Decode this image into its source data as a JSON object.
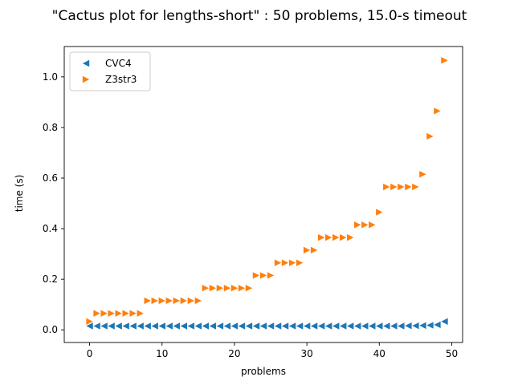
{
  "chart_data": {
    "type": "scatter",
    "title": "\"Cactus plot for lengths-short\" : 50 problems, 15.0-s timeout",
    "xlabel": "problems",
    "ylabel": "time (s)",
    "xlim": [
      -3.5,
      51.5
    ],
    "ylim": [
      -0.05,
      1.12
    ],
    "xticks": [
      0,
      10,
      20,
      30,
      40,
      50
    ],
    "yticks": [
      0.0,
      0.2,
      0.4,
      0.6,
      0.8,
      1.0
    ],
    "grid": false,
    "legend_position": "upper-left",
    "series": [
      {
        "name": "CVC4",
        "color": "#1f77b4",
        "marker": "triangle-left",
        "x": [
          0,
          1,
          2,
          3,
          4,
          5,
          6,
          7,
          8,
          9,
          10,
          11,
          12,
          13,
          14,
          15,
          16,
          17,
          18,
          19,
          20,
          21,
          22,
          23,
          24,
          25,
          26,
          27,
          28,
          29,
          30,
          31,
          32,
          33,
          34,
          35,
          36,
          37,
          38,
          39,
          40,
          41,
          42,
          43,
          44,
          45,
          46,
          47,
          48,
          49
        ],
        "y": [
          0.015,
          0.015,
          0.015,
          0.015,
          0.015,
          0.015,
          0.015,
          0.015,
          0.015,
          0.015,
          0.015,
          0.015,
          0.015,
          0.015,
          0.015,
          0.015,
          0.015,
          0.015,
          0.015,
          0.015,
          0.015,
          0.015,
          0.015,
          0.015,
          0.015,
          0.015,
          0.015,
          0.015,
          0.015,
          0.015,
          0.015,
          0.015,
          0.015,
          0.015,
          0.015,
          0.015,
          0.015,
          0.015,
          0.015,
          0.015,
          0.015,
          0.015,
          0.015,
          0.015,
          0.016,
          0.016,
          0.017,
          0.018,
          0.02,
          0.033
        ]
      },
      {
        "name": "Z3str3",
        "color": "#ff7f0e",
        "marker": "triangle-right",
        "x": [
          0,
          1,
          2,
          3,
          4,
          5,
          6,
          7,
          8,
          9,
          10,
          11,
          12,
          13,
          14,
          15,
          16,
          17,
          18,
          19,
          20,
          21,
          22,
          23,
          24,
          25,
          26,
          27,
          28,
          29,
          30,
          31,
          32,
          33,
          34,
          35,
          36,
          37,
          38,
          39,
          40,
          41,
          42,
          43,
          44,
          45,
          46,
          47,
          48,
          49
        ],
        "y": [
          0.033,
          0.065,
          0.065,
          0.065,
          0.065,
          0.065,
          0.065,
          0.065,
          0.115,
          0.115,
          0.115,
          0.115,
          0.115,
          0.115,
          0.115,
          0.115,
          0.165,
          0.165,
          0.165,
          0.165,
          0.165,
          0.165,
          0.165,
          0.215,
          0.215,
          0.215,
          0.265,
          0.265,
          0.265,
          0.265,
          0.315,
          0.315,
          0.365,
          0.365,
          0.365,
          0.365,
          0.365,
          0.415,
          0.415,
          0.415,
          0.465,
          0.565,
          0.565,
          0.565,
          0.565,
          0.565,
          0.615,
          0.765,
          0.865,
          1.065
        ]
      }
    ]
  }
}
